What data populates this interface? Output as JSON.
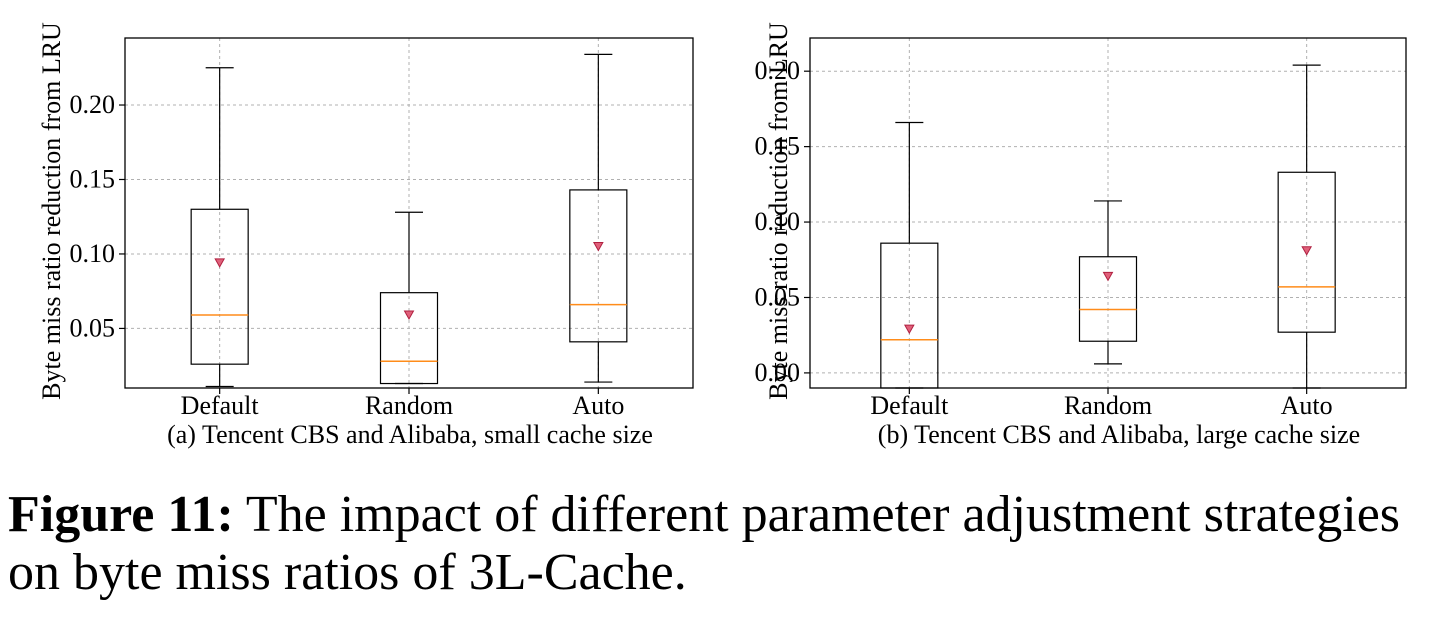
{
  "charts": [
    {
      "id": "a",
      "subcaption": "(a) Tencent CBS and Alibaba, small cache size",
      "ylabel": "Byte miss ratio reduction from LRU",
      "ylim": [
        0.01,
        0.245
      ],
      "yticks": [
        0.05,
        0.1,
        0.15,
        0.2
      ],
      "ytick_labels": [
        "0.05",
        "0.10",
        "0.15",
        "0.20"
      ]
    },
    {
      "id": "b",
      "subcaption": "(b) Tencent CBS and Alibaba, large cache size",
      "ylabel": "Byte miss ratio reduction from LRU",
      "ylim": [
        -0.01,
        0.222
      ],
      "yticks": [
        0.0,
        0.05,
        0.1,
        0.15,
        0.2
      ],
      "ytick_labels": [
        "0.00",
        "0.05",
        "0.10",
        "0.15",
        "0.20"
      ]
    }
  ],
  "caption": {
    "label": "Figure 11:",
    "text": " The impact of different parameter adjustment strategies on byte miss ratios of 3L-Cache."
  },
  "colors": {
    "median": "#ff8c1a",
    "mean_fill": "#e0607a",
    "mean_stroke": "#b02040",
    "grid": "#b0b0b0"
  },
  "chart_data": [
    {
      "type": "box",
      "categories": [
        "Default",
        "Random",
        "Auto"
      ],
      "xlabel": "",
      "ylabel": "Byte miss ratio reduction from LRU",
      "ylim": [
        0.01,
        0.245
      ],
      "grid": true,
      "boxes": [
        {
          "whisker_low": 0.011,
          "q1": 0.026,
          "median": 0.059,
          "q3": 0.13,
          "whisker_high": 0.225,
          "mean": 0.094
        },
        {
          "whisker_low": 0.013,
          "q1": 0.013,
          "median": 0.028,
          "q3": 0.074,
          "whisker_high": 0.128,
          "mean": 0.059
        },
        {
          "whisker_low": 0.014,
          "q1": 0.041,
          "median": 0.066,
          "q3": 0.143,
          "whisker_high": 0.234,
          "mean": 0.105
        }
      ]
    },
    {
      "type": "box",
      "categories": [
        "Default",
        "Random",
        "Auto"
      ],
      "xlabel": "",
      "ylabel": "Byte miss ratio reduction from LRU",
      "ylim": [
        -0.01,
        0.222
      ],
      "grid": true,
      "boxes": [
        {
          "whisker_low": -0.01,
          "q1": -0.01,
          "median": 0.022,
          "q3": 0.086,
          "whisker_high": 0.166,
          "mean": 0.029
        },
        {
          "whisker_low": 0.006,
          "q1": 0.021,
          "median": 0.042,
          "q3": 0.077,
          "whisker_high": 0.114,
          "mean": 0.064
        },
        {
          "whisker_low": -0.01,
          "q1": 0.027,
          "median": 0.057,
          "q3": 0.133,
          "whisker_high": 0.204,
          "mean": 0.081
        }
      ]
    }
  ]
}
